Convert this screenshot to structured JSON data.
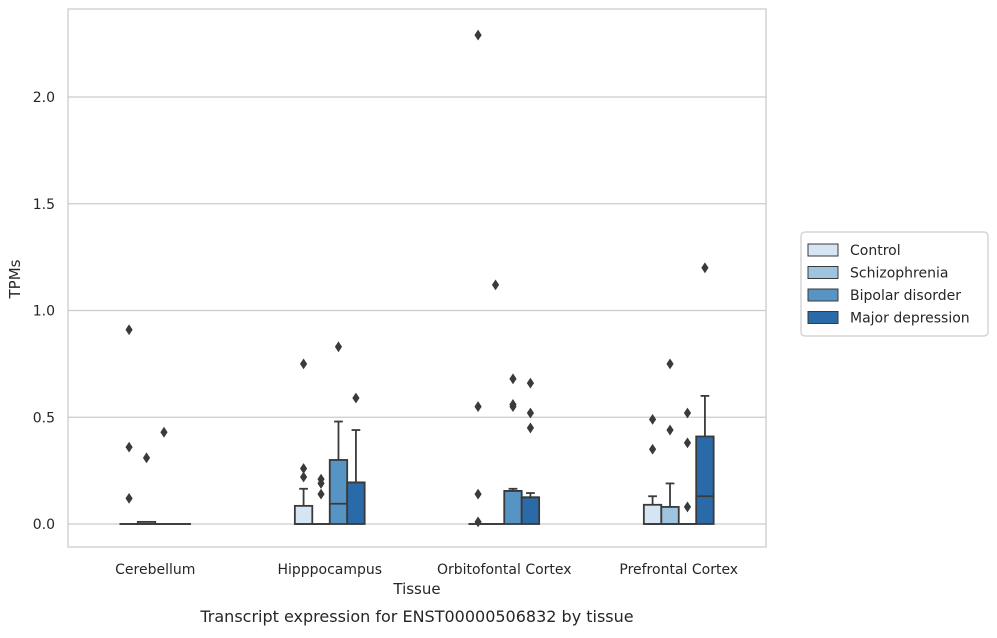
{
  "chart_data": {
    "type": "box",
    "title": "Transcript expression for ENST00000506832 by tissue",
    "xlabel": "Tissue",
    "ylabel": "TPMs",
    "ylim": [
      -0.11,
      2.42
    ],
    "yticks": [
      0.0,
      0.5,
      1.0,
      1.5,
      2.0
    ],
    "ytick_labels": [
      "0.0",
      "0.5",
      "1.0",
      "1.5",
      "2.0"
    ],
    "grid": "horizontal",
    "legend_position": "right",
    "categories": [
      "Cerebellum",
      "Hipppocampus",
      "Orbitofontal Cortex",
      "Prefrontal Cortex"
    ],
    "series": [
      {
        "name": "Control",
        "color": "#d6e5f3",
        "boxes": [
          {
            "q1": 0,
            "median": 0,
            "q3": 0,
            "whisker_low": 0,
            "whisker_high": 0,
            "outliers": [
              0.91,
              0.36,
              0.12
            ]
          },
          {
            "q1": 0,
            "median": 0,
            "q3": 0.085,
            "whisker_low": 0,
            "whisker_high": 0.165,
            "outliers": [
              0.75,
              0.26,
              0.22
            ]
          },
          {
            "q1": 0,
            "median": 0,
            "q3": 0,
            "whisker_low": 0,
            "whisker_high": 0,
            "outliers": [
              2.29,
              0.55,
              0.14,
              0.01
            ]
          },
          {
            "q1": 0,
            "median": 0,
            "q3": 0.09,
            "whisker_low": 0,
            "whisker_high": 0.13,
            "outliers": [
              0.49,
              0.35
            ]
          }
        ]
      },
      {
        "name": "Schizophrenia",
        "color": "#9ec5df",
        "boxes": [
          {
            "q1": 0,
            "median": 0,
            "q3": 0.01,
            "whisker_low": 0,
            "whisker_high": 0.01,
            "outliers": [
              0.31
            ]
          },
          {
            "q1": 0,
            "median": 0,
            "q3": 0,
            "whisker_low": 0,
            "whisker_high": 0,
            "outliers": [
              0.21,
              0.19,
              0.14
            ]
          },
          {
            "q1": 0,
            "median": 0,
            "q3": 0,
            "whisker_low": 0,
            "whisker_high": 0,
            "outliers": [
              1.12
            ]
          },
          {
            "q1": 0,
            "median": 0,
            "q3": 0.08,
            "whisker_low": 0,
            "whisker_high": 0.19,
            "outliers": [
              0.75,
              0.44
            ]
          }
        ]
      },
      {
        "name": "Bipolar disorder",
        "color": "#5694c3",
        "boxes": [
          {
            "q1": 0,
            "median": 0,
            "q3": 0,
            "whisker_low": 0,
            "whisker_high": 0,
            "outliers": [
              0.43
            ]
          },
          {
            "q1": 0,
            "median": 0.095,
            "q3": 0.3,
            "whisker_low": 0,
            "whisker_high": 0.48,
            "outliers": [
              0.83
            ]
          },
          {
            "q1": 0,
            "median": 0.155,
            "q3": 0.155,
            "whisker_low": 0,
            "whisker_high": 0.165,
            "outliers": [
              0.68,
              0.56,
              0.55
            ]
          },
          {
            "q1": 0,
            "median": 0,
            "q3": 0,
            "whisker_low": 0,
            "whisker_high": 0,
            "outliers": [
              0.52,
              0.38,
              0.08
            ]
          }
        ]
      },
      {
        "name": "Major depression",
        "color": "#2b6aa8",
        "boxes": [
          {
            "q1": 0,
            "median": 0,
            "q3": 0,
            "whisker_low": 0,
            "whisker_high": 0,
            "outliers": []
          },
          {
            "q1": 0,
            "median": 0.195,
            "q3": 0.195,
            "whisker_low": 0,
            "whisker_high": 0.44,
            "outliers": [
              0.59
            ]
          },
          {
            "q1": 0,
            "median": 0.125,
            "q3": 0.125,
            "whisker_low": 0,
            "whisker_high": 0.145,
            "outliers": [
              0.66,
              0.52,
              0.45
            ]
          },
          {
            "q1": 0,
            "median": 0.13,
            "q3": 0.41,
            "whisker_low": 0,
            "whisker_high": 0.6,
            "outliers": [
              1.2
            ]
          }
        ]
      }
    ]
  }
}
